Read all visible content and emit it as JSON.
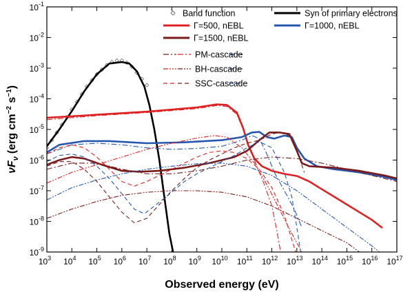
{
  "chart_data": {
    "type": "line",
    "xlabel": "Observed energy (eV)",
    "ylabel": "νF",
    "ylabel_sub": "ν",
    "ylabel_units": "(erg cm",
    "ylabel_units_sup1": "−2",
    "ylabel_units_mid": " s",
    "ylabel_units_sup2": "−1",
    "ylabel_units_end": ")",
    "x_scale": "log",
    "y_scale": "log",
    "xlim_exp": [
      3,
      17
    ],
    "ylim_exp": [
      -9,
      -1
    ],
    "x_tick_base": "10",
    "x_tick_exps": [
      "3",
      "4",
      "5",
      "6",
      "7",
      "8",
      "9",
      "10",
      "11",
      "12",
      "13",
      "14",
      "15",
      "16",
      "17"
    ],
    "y_tick_base": "10",
    "y_tick_exps": [
      "-1",
      "-2",
      "-3",
      "-4",
      "-5",
      "-6",
      "-7",
      "-8",
      "-9"
    ],
    "colors": {
      "red": "#e02020",
      "blue": "#2456b0",
      "darkred": "#7a1a1a",
      "black": "#000000",
      "band": "#666666"
    },
    "legend": [
      {
        "label": "Band function",
        "kind": "marker",
        "color": "#666666"
      },
      {
        "label": "Syn of primary electrons",
        "kind": "solid-thick",
        "color": "#000000"
      },
      {
        "label": "Γ=500, nEBL",
        "kind": "solid-thick",
        "color": "#e02020"
      },
      {
        "label": "Γ=1000, nEBL",
        "kind": "solid-thick",
        "color": "#2456b0"
      },
      {
        "label": "Γ=1500, nEBL",
        "kind": "solid-thick",
        "color": "#7a1a1a"
      },
      {
        "label": "PM-cascade",
        "kind": "dashdot",
        "colors": [
          "#7a1a1a",
          "#e02020",
          "#2456b0"
        ]
      },
      {
        "label": "BH-cascade",
        "kind": "dashdotdot",
        "colors": [
          "#e02020",
          "#7a1a1a",
          "#2456b0"
        ]
      },
      {
        "label": "SSC-cascade",
        "kind": "dashed",
        "colors": [
          "#e02020",
          "#7a1a1a",
          "#2456b0"
        ]
      }
    ],
    "series": [
      {
        "name": "Band function",
        "style": "marker",
        "color": "#666666",
        "points": [
          [
            3,
            -5.6
          ],
          [
            3.2,
            -5.35
          ],
          [
            3.4,
            -5.1
          ],
          [
            3.6,
            -4.85
          ],
          [
            3.8,
            -4.6
          ],
          [
            4,
            -4.35
          ],
          [
            4.2,
            -4.1
          ],
          [
            4.4,
            -3.85
          ],
          [
            4.6,
            -3.6
          ],
          [
            4.8,
            -3.4
          ],
          [
            5,
            -3.2
          ],
          [
            5.2,
            -3.05
          ],
          [
            5.4,
            -2.9
          ],
          [
            5.6,
            -2.8
          ],
          [
            5.8,
            -2.75
          ],
          [
            6,
            -2.75
          ],
          [
            6.2,
            -2.82
          ],
          [
            6.4,
            -2.95
          ],
          [
            6.6,
            -3.15
          ],
          [
            6.8,
            -3.35
          ],
          [
            7,
            -3.55
          ]
        ]
      },
      {
        "name": "Syn of primary electrons",
        "style": "solid-thick",
        "color": "#000000",
        "points": [
          [
            3,
            -5.55
          ],
          [
            3.5,
            -5.0
          ],
          [
            4,
            -4.4
          ],
          [
            4.5,
            -3.75
          ],
          [
            5,
            -3.2
          ],
          [
            5.5,
            -2.85
          ],
          [
            6,
            -2.8
          ],
          [
            6.3,
            -2.85
          ],
          [
            6.6,
            -3.1
          ],
          [
            6.9,
            -3.6
          ],
          [
            7.1,
            -4.2
          ],
          [
            7.3,
            -5.0
          ],
          [
            7.5,
            -6.0
          ],
          [
            7.7,
            -7.2
          ],
          [
            7.9,
            -8.4
          ],
          [
            8.05,
            -9.0
          ]
        ]
      },
      {
        "name": "Γ=500, nEBL",
        "style": "solid-thick",
        "color": "#e02020",
        "points": [
          [
            3,
            -4.62
          ],
          [
            5,
            -4.52
          ],
          [
            7,
            -4.42
          ],
          [
            9,
            -4.28
          ],
          [
            9.8,
            -4.18
          ],
          [
            10.2,
            -4.2
          ],
          [
            10.6,
            -4.45
          ],
          [
            10.85,
            -4.95
          ],
          [
            11.05,
            -5.5
          ],
          [
            11.3,
            -5.95
          ],
          [
            11.6,
            -6.2
          ],
          [
            12,
            -6.35
          ],
          [
            12.5,
            -6.45
          ],
          [
            13,
            -6.52
          ],
          [
            13.5,
            -6.7
          ],
          [
            14,
            -6.95
          ],
          [
            14.5,
            -7.2
          ],
          [
            15,
            -7.45
          ],
          [
            15.5,
            -7.7
          ],
          [
            16,
            -7.95
          ],
          [
            16.4,
            -8.2
          ]
        ]
      },
      {
        "name": "Γ=1000, nEBL",
        "style": "solid-thick",
        "color": "#2456b0",
        "points": [
          [
            3,
            -5.75
          ],
          [
            3.5,
            -5.5
          ],
          [
            4.5,
            -5.38
          ],
          [
            5.5,
            -5.38
          ],
          [
            7,
            -5.45
          ],
          [
            8.5,
            -5.42
          ],
          [
            10,
            -5.35
          ],
          [
            10.8,
            -5.25
          ],
          [
            11.2,
            -5.1
          ],
          [
            11.5,
            -5.08
          ],
          [
            11.8,
            -5.25
          ],
          [
            12.1,
            -5.3
          ],
          [
            12.5,
            -5.2
          ],
          [
            12.8,
            -5.25
          ],
          [
            13,
            -5.6
          ],
          [
            13.3,
            -5.95
          ],
          [
            13.8,
            -6.2
          ],
          [
            14.5,
            -6.3
          ],
          [
            15.5,
            -6.4
          ],
          [
            16.5,
            -6.55
          ],
          [
            17,
            -6.65
          ]
        ]
      },
      {
        "name": "Γ=1500, nEBL",
        "style": "solid-thick",
        "color": "#7a1a1a",
        "points": [
          [
            3,
            -6.15
          ],
          [
            3.5,
            -6.0
          ],
          [
            4,
            -5.9
          ],
          [
            4.5,
            -5.95
          ],
          [
            5.2,
            -6.15
          ],
          [
            6,
            -6.35
          ],
          [
            6.7,
            -6.38
          ],
          [
            7.5,
            -6.35
          ],
          [
            8.5,
            -6.25
          ],
          [
            9.5,
            -6.1
          ],
          [
            10.5,
            -5.9
          ],
          [
            11,
            -5.7
          ],
          [
            11.5,
            -5.35
          ],
          [
            11.9,
            -5.1
          ],
          [
            12.3,
            -5.1
          ],
          [
            12.7,
            -5.15
          ],
          [
            13,
            -5.7
          ],
          [
            13.2,
            -6.1
          ],
          [
            13.5,
            -6.2
          ],
          [
            14.5,
            -6.25
          ],
          [
            15.5,
            -6.35
          ],
          [
            16.5,
            -6.5
          ],
          [
            17,
            -6.6
          ]
        ]
      },
      {
        "name": "",
        "style": "dashdot",
        "color": "#e02020",
        "points": [
          [
            3,
            -4.68
          ],
          [
            5,
            -4.55
          ],
          [
            7,
            -4.45
          ],
          [
            9,
            -4.32
          ],
          [
            9.8,
            -4.22
          ],
          [
            10.2,
            -4.25
          ],
          [
            10.6,
            -4.5
          ],
          [
            10.85,
            -5.0
          ],
          [
            11.1,
            -5.6
          ],
          [
            11.4,
            -6.2
          ],
          [
            11.7,
            -6.8
          ],
          [
            12,
            -7.5
          ],
          [
            12.2,
            -8.3
          ],
          [
            12.35,
            -9.0
          ]
        ]
      },
      {
        "name": "",
        "style": "dashdot",
        "color": "#2456b0",
        "points": [
          [
            3,
            -5.8
          ],
          [
            4,
            -5.5
          ],
          [
            5,
            -5.45
          ],
          [
            6,
            -5.5
          ],
          [
            7,
            -5.6
          ],
          [
            8,
            -5.65
          ],
          [
            9,
            -5.62
          ],
          [
            10,
            -5.55
          ],
          [
            10.8,
            -5.35
          ],
          [
            11.2,
            -5.2
          ],
          [
            11.5,
            -5.3
          ],
          [
            11.8,
            -5.8
          ],
          [
            12.1,
            -6.4
          ],
          [
            12.5,
            -7.0
          ],
          [
            12.9,
            -7.6
          ],
          [
            13.2,
            -8.2
          ]
        ]
      },
      {
        "name": "",
        "style": "dashdot",
        "color": "#7a1a1a",
        "points": [
          [
            3,
            -6.3
          ],
          [
            4,
            -6.1
          ],
          [
            5,
            -6.1
          ],
          [
            6,
            -6.3
          ],
          [
            7,
            -6.45
          ],
          [
            8,
            -6.45
          ],
          [
            9,
            -6.35
          ],
          [
            10,
            -6.2
          ],
          [
            11,
            -6.0
          ],
          [
            12,
            -5.9
          ],
          [
            13,
            -5.95
          ],
          [
            14,
            -6.1
          ],
          [
            15,
            -6.3
          ],
          [
            16,
            -6.5
          ],
          [
            17,
            -6.7
          ]
        ]
      },
      {
        "name": "",
        "style": "dashdotdot",
        "color": "#e02020",
        "points": [
          [
            3,
            -6.75
          ],
          [
            4,
            -6.4
          ],
          [
            5,
            -6.15
          ],
          [
            6,
            -5.9
          ],
          [
            7,
            -5.65
          ],
          [
            8,
            -5.45
          ],
          [
            9,
            -5.28
          ],
          [
            9.7,
            -5.2
          ],
          [
            10.2,
            -5.25
          ],
          [
            10.8,
            -5.6
          ],
          [
            11.3,
            -6.1
          ],
          [
            11.8,
            -6.8
          ],
          [
            12.3,
            -7.6
          ],
          [
            12.8,
            -8.4
          ],
          [
            13.2,
            -9.0
          ]
        ]
      },
      {
        "name": "",
        "style": "dashdotdot",
        "color": "#7a1a1a",
        "points": [
          [
            3,
            -7.9
          ],
          [
            4,
            -7.6
          ],
          [
            5,
            -7.35
          ],
          [
            6,
            -7.15
          ],
          [
            7,
            -7.05
          ],
          [
            8,
            -7.0
          ],
          [
            9,
            -7.0
          ],
          [
            10,
            -7.05
          ],
          [
            11,
            -7.2
          ],
          [
            12,
            -7.5
          ],
          [
            13,
            -7.9
          ],
          [
            14,
            -8.3
          ],
          [
            15,
            -8.7
          ],
          [
            15.5,
            -9.0
          ]
        ]
      },
      {
        "name": "",
        "style": "dashdotdot",
        "color": "#2456b0",
        "points": [
          [
            3,
            -7.3
          ],
          [
            4,
            -6.9
          ],
          [
            5,
            -6.65
          ],
          [
            6,
            -6.45
          ],
          [
            7,
            -6.3
          ],
          [
            8,
            -6.2
          ],
          [
            9,
            -6.12
          ],
          [
            10,
            -6.1
          ],
          [
            11,
            -6.2
          ],
          [
            12,
            -6.5
          ],
          [
            13,
            -7.0
          ],
          [
            14,
            -7.6
          ],
          [
            15,
            -8.2
          ],
          [
            16,
            -8.8
          ],
          [
            16.3,
            -9.0
          ]
        ]
      },
      {
        "name": "",
        "style": "dashed",
        "color": "#e02020",
        "points": [
          [
            3,
            -5.8
          ],
          [
            3.5,
            -5.6
          ],
          [
            4,
            -5.5
          ],
          [
            4.5,
            -5.6
          ],
          [
            5,
            -5.9
          ],
          [
            5.5,
            -6.3
          ],
          [
            6,
            -6.7
          ],
          [
            6.5,
            -6.85
          ],
          [
            7,
            -6.7
          ],
          [
            7.5,
            -6.5
          ],
          [
            8,
            -6.3
          ],
          [
            8.5,
            -6.1
          ],
          [
            9,
            -5.9
          ],
          [
            9.5,
            -5.75
          ],
          [
            10,
            -5.7
          ],
          [
            10.5,
            -5.75
          ],
          [
            11,
            -5.95
          ],
          [
            11.5,
            -6.3
          ],
          [
            12,
            -6.9
          ],
          [
            12.5,
            -7.8
          ],
          [
            12.8,
            -8.6
          ],
          [
            12.95,
            -9.0
          ]
        ]
      },
      {
        "name": "",
        "style": "dashed",
        "color": "#7a1a1a",
        "points": [
          [
            3,
            -6.2
          ],
          [
            3.5,
            -6.05
          ],
          [
            4,
            -6.05
          ],
          [
            4.5,
            -6.3
          ],
          [
            5,
            -6.7
          ],
          [
            5.5,
            -7.2
          ],
          [
            6,
            -7.7
          ],
          [
            6.5,
            -8.05
          ],
          [
            7,
            -7.9
          ],
          [
            7.5,
            -7.45
          ],
          [
            8,
            -7.0
          ],
          [
            8.5,
            -6.6
          ],
          [
            9,
            -6.25
          ],
          [
            9.5,
            -6.0
          ],
          [
            10,
            -5.8
          ],
          [
            10.5,
            -5.6
          ],
          [
            11,
            -5.45
          ],
          [
            11.5,
            -5.35
          ],
          [
            12,
            -5.15
          ],
          [
            12.3,
            -5.1
          ],
          [
            12.7,
            -5.2
          ],
          [
            13,
            -5.7
          ],
          [
            13.3,
            -6.4
          ]
        ]
      },
      {
        "name": "",
        "style": "dashed",
        "color": "#2456b0",
        "points": [
          [
            3,
            -6.05
          ],
          [
            3.5,
            -5.85
          ],
          [
            4,
            -5.8
          ],
          [
            4.5,
            -5.9
          ],
          [
            5,
            -6.2
          ],
          [
            5.5,
            -6.6
          ],
          [
            6,
            -7.1
          ],
          [
            6.5,
            -7.6
          ],
          [
            6.9,
            -7.75
          ],
          [
            7.3,
            -7.5
          ],
          [
            8,
            -7.05
          ],
          [
            8.5,
            -6.7
          ],
          [
            9,
            -6.45
          ],
          [
            9.5,
            -6.25
          ],
          [
            10,
            -6.05
          ],
          [
            10.5,
            -5.85
          ],
          [
            11,
            -5.6
          ],
          [
            11.5,
            -5.4
          ],
          [
            12,
            -5.6
          ],
          [
            12.5,
            -6.4
          ],
          [
            12.8,
            -7.2
          ],
          [
            13,
            -8.2
          ],
          [
            13.15,
            -9.0
          ]
        ]
      }
    ]
  }
}
